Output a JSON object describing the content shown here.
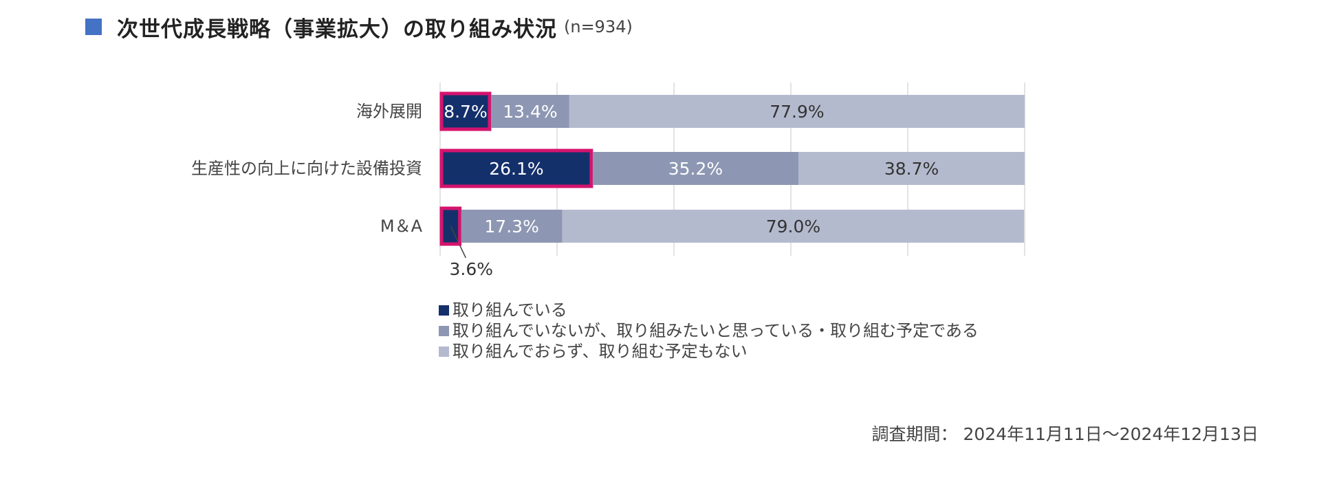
{
  "header": {
    "title": "次世代成長戦略（事業拡大）の取り組み状況",
    "sample": "(n=934)",
    "square_color": "#4472C4"
  },
  "chart_data": {
    "type": "bar",
    "orientation": "horizontal",
    "stacked": true,
    "percent_stacked": true,
    "categories": [
      "海外展開",
      "生産性の向上に向けた設備投資",
      "M＆A"
    ],
    "series": [
      {
        "name": "取り組んでいる",
        "values": [
          8.7,
          26.1,
          3.6
        ],
        "color": "#14306B",
        "label_color": "#ffffff"
      },
      {
        "name": "取り組んでいないが、取り組みたいと思っている・取り組む予定である",
        "values": [
          13.4,
          35.2,
          17.3
        ],
        "color": "#8D97B3",
        "label_color": "#ffffff"
      },
      {
        "name": "取り組んでおらず、取り組む予定もない",
        "values": [
          77.9,
          38.7,
          79.0
        ],
        "color": "#B4BACE",
        "label_color": "#333333"
      }
    ],
    "data_labels": [
      [
        "8.7%",
        "26.1%",
        "3.6%"
      ],
      [
        "13.4%",
        "35.2%",
        "17.3%"
      ],
      [
        "77.9%",
        "38.7%",
        "79.0%"
      ]
    ],
    "highlight_series": 0,
    "highlight_color": "#D4146E",
    "xlim": [
      0,
      100
    ],
    "grid": true,
    "legend_position": "bottom-left"
  },
  "footer": {
    "period": "調査期間： 2024年11月11日～2024年12月13日"
  }
}
